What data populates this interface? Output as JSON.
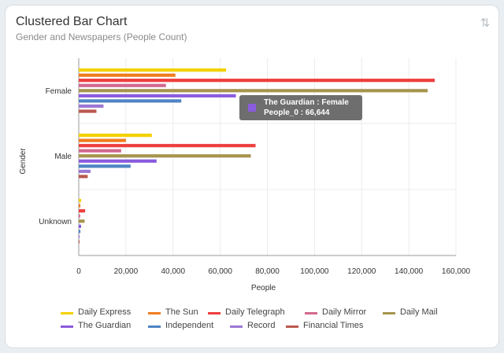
{
  "header": {
    "title": "Clustered Bar Chart",
    "subtitle": "Gender and Newspapers (People Count)"
  },
  "toolbar": {
    "sort_icon": "sort-arrows-icon"
  },
  "chart_data": {
    "type": "bar",
    "orientation": "horizontal",
    "categories": [
      "Female",
      "Male",
      "Unknown"
    ],
    "xlabel": "People",
    "ylabel": "Gender",
    "xlim": [
      0,
      160000
    ],
    "xticks": [
      "0",
      "20,000",
      "40,000",
      "60,000",
      "80,000",
      "100,000",
      "120,000",
      "140,000",
      "160,000"
    ],
    "grid": true,
    "legend_position": "bottom",
    "series": [
      {
        "name": "Daily Express",
        "color": "#f4d100",
        "values": [
          62500,
          31000,
          1000
        ]
      },
      {
        "name": "The Sun",
        "color": "#f07d1f",
        "values": [
          41000,
          20000,
          700
        ]
      },
      {
        "name": "Daily Telegraph",
        "color": "#ee3e3e",
        "values": [
          151000,
          75000,
          2700
        ]
      },
      {
        "name": "Daily Mirror",
        "color": "#d2698f",
        "values": [
          37000,
          18000,
          600
        ]
      },
      {
        "name": "Daily Mail",
        "color": "#a6944e",
        "values": [
          148000,
          73000,
          2500
        ]
      },
      {
        "name": "The Guardian",
        "color": "#8a5cdd",
        "values": [
          66644,
          33000,
          1000
        ]
      },
      {
        "name": "Independent",
        "color": "#4f84c4",
        "values": [
          43500,
          22000,
          700
        ]
      },
      {
        "name": "Record",
        "color": "#9c78d4",
        "values": [
          10500,
          5000,
          200
        ]
      },
      {
        "name": "Financial Times",
        "color": "#b9594f",
        "values": [
          7500,
          3800,
          200
        ]
      }
    ],
    "tooltip": {
      "line1": "The Guardian : Female",
      "line2": "People_0 : 66,644"
    }
  }
}
